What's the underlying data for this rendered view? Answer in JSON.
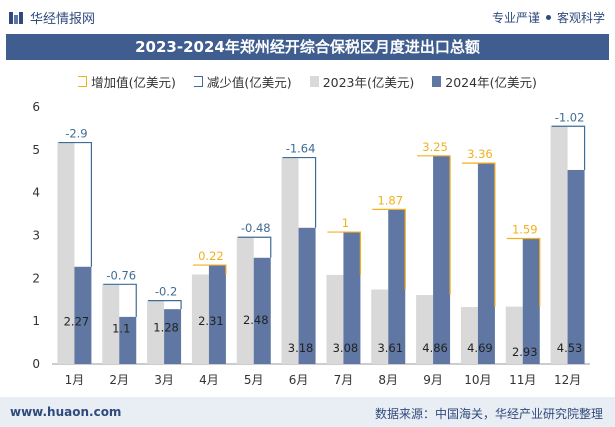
{
  "header": {
    "brand": "华经情报网",
    "tagline_left": "专业严谨",
    "tagline_right": "客观科学"
  },
  "title": "2023-2024年郑州经开综合保税区月度进出口总额",
  "legend": {
    "increase": "增加值(亿美元)",
    "decrease": "减少值(亿美元)",
    "y2023": "2023年(亿美元)",
    "y2024": "2024年(亿美元)"
  },
  "footer": {
    "site": "www.huaon.com",
    "source": "数据来源：中国海关，华经产业研究院整理"
  },
  "colors": {
    "bar2023": "#d9d9d9",
    "bar2024": "#5f77a2",
    "increase": "#f2b01e",
    "decrease": "#3f6c96",
    "title_bg": "#3f5d8e"
  },
  "chart_data": {
    "type": "bar",
    "categories": [
      "1月",
      "2月",
      "3月",
      "4月",
      "5月",
      "6月",
      "7月",
      "8月",
      "9月",
      "10月",
      "11月",
      "12月"
    ],
    "series": [
      {
        "name": "2023年(亿美元)",
        "values": [
          5.17,
          1.86,
          1.48,
          2.09,
          2.96,
          4.82,
          2.08,
          1.74,
          1.61,
          1.33,
          1.34,
          5.55
        ]
      },
      {
        "name": "2024年(亿美元)",
        "values": [
          2.27,
          1.1,
          1.28,
          2.31,
          2.48,
          3.18,
          3.08,
          3.61,
          4.86,
          4.69,
          2.93,
          4.53
        ]
      }
    ],
    "change": [
      -2.9,
      -0.76,
      -0.2,
      0.22,
      -0.48,
      -1.64,
      1,
      1.87,
      3.25,
      3.36,
      1.59,
      -1.02
    ],
    "change_labels": [
      "-2.9",
      "-0.76",
      "-0.2",
      "0.22",
      "-0.48",
      "-1.64",
      "1",
      "1.87",
      "3.25",
      "3.36",
      "1.59",
      "-1.02"
    ],
    "value_labels_2024": [
      "2.27",
      "1.1",
      "1.28",
      "2.31",
      "2.48",
      "3.18",
      "3.08",
      "3.61",
      "4.86",
      "4.69",
      "2.93",
      "4.53"
    ],
    "ylim": [
      0,
      6
    ],
    "yticks": [
      "0",
      "1",
      "2",
      "3",
      "4",
      "5",
      "6"
    ],
    "grid": false,
    "legend_position": "top"
  }
}
